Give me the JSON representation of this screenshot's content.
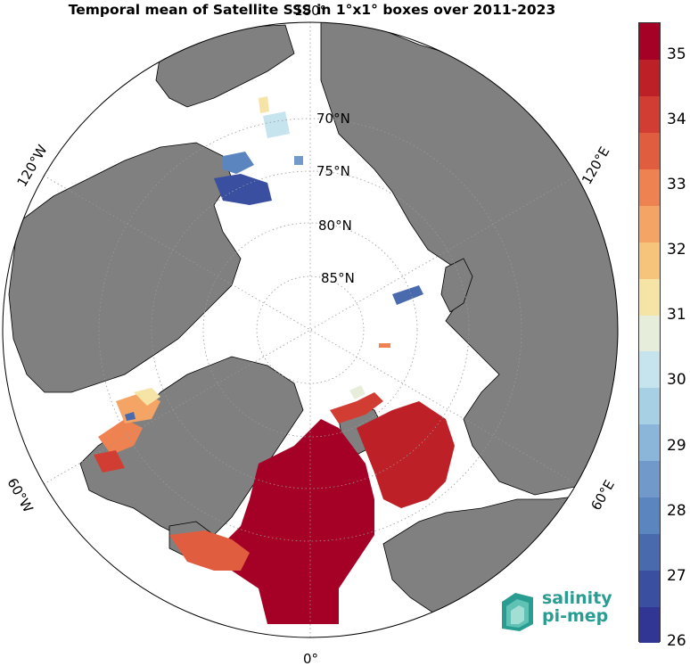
{
  "title": "Temporal mean of Satellite SSS in 1°x1° boxes over 2011-2023",
  "map": {
    "projection": "north-polar-stereographic",
    "latitude_labels": [
      "70°N",
      "75°N",
      "80°N",
      "85°N"
    ],
    "longitude_labels": [
      "0°",
      "60°E",
      "120°E",
      "180°",
      "120°W",
      "60°W"
    ],
    "land_color": "#808080",
    "ocean_color": "#ffffff",
    "graticule_style": "dotted"
  },
  "colorbar": {
    "min": 26,
    "max": 35.5,
    "ticks": [
      "26",
      "27",
      "28",
      "29",
      "30",
      "31",
      "32",
      "33",
      "34",
      "35"
    ],
    "colors": [
      "#313695",
      "#3a4fa0",
      "#4a6aae",
      "#5b85bf",
      "#7199c9",
      "#8cb6d9",
      "#a8d0e4",
      "#c6e4ed",
      "#e6eedb",
      "#f6e3a6",
      "#f7c47c",
      "#f4a465",
      "#ee8250",
      "#e05e3f",
      "#d13d32",
      "#bd2026",
      "#a50026"
    ]
  },
  "logo": {
    "line1": "salinity",
    "line2": "pi-mep",
    "color": "#2a9d93"
  }
}
